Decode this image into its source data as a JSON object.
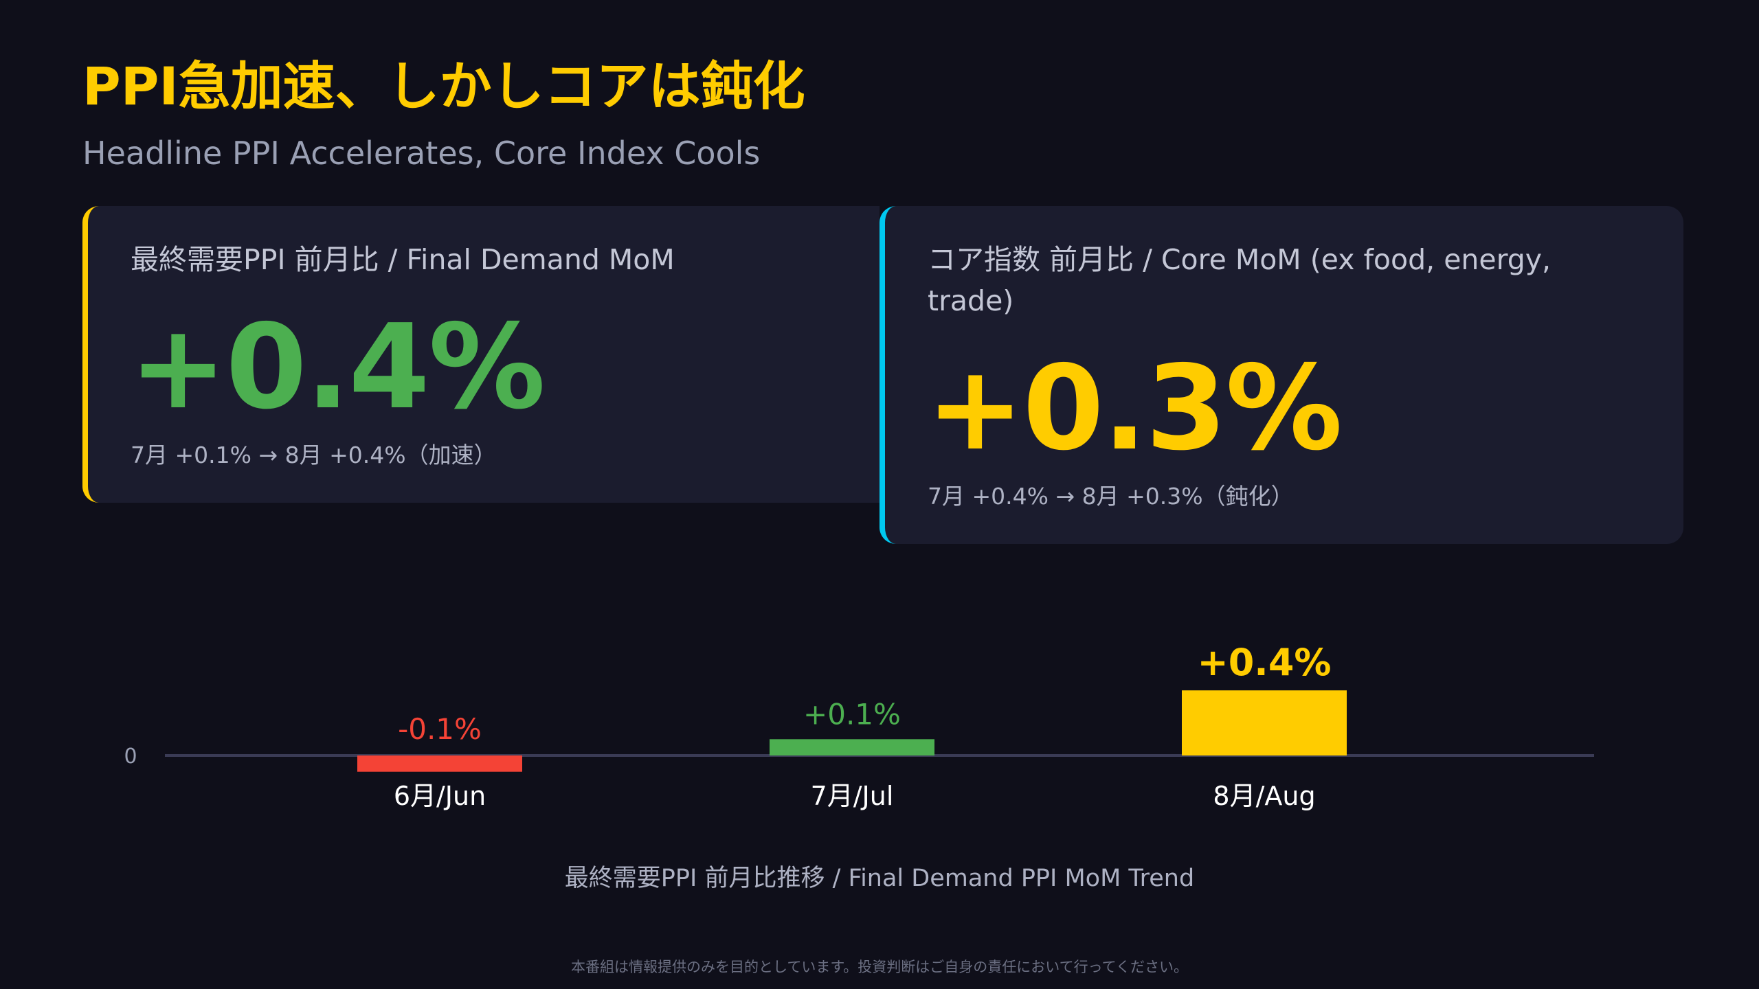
{
  "header": {
    "title": "PPI急加速、しかしコアは鈍化",
    "subtitle": "Headline PPI Accelerates, Core Index Cools"
  },
  "cards": [
    {
      "label": "最終需要PPI 前月比 / Final Demand MoM",
      "value": "+0.4%",
      "note": "7月 +0.1% → 8月 +0.4%（加速）",
      "accent": "#ffcc00",
      "value_color": "#4caf50"
    },
    {
      "label": "コア指数 前月比 / Core MoM (ex food, energy, trade)",
      "value": "+0.3%",
      "note": "7月 +0.4% → 8月 +0.3%（鈍化）",
      "accent": "#00c8f0",
      "value_color": "#ffcc00"
    }
  ],
  "chart_data": {
    "type": "bar",
    "categories": [
      "6月/Jun",
      "7月/Jul",
      "8月/Aug"
    ],
    "values": [
      -0.1,
      0.1,
      0.4
    ],
    "data_labels": [
      "-0.1%",
      "+0.1%",
      "+0.4%"
    ],
    "colors": [
      "#f44336",
      "#4caf50",
      "#ffcc00"
    ],
    "zero_label": "0",
    "title": "最終需要PPI 前月比推移 / Final Demand PPI MoM Trend",
    "grid": false,
    "legend": "none"
  },
  "footer": {
    "disclaimer": "本番組は情報提供のみを目的としています。投資判断はご自身の責任において行ってください。"
  }
}
